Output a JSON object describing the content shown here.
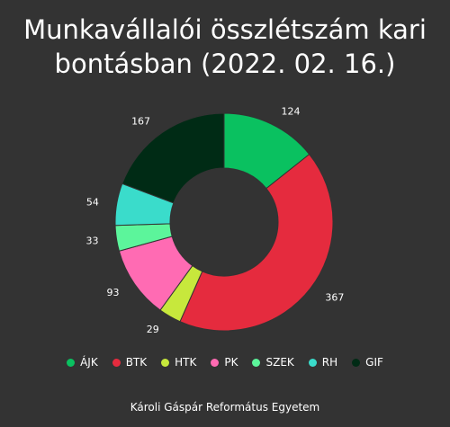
{
  "chart_data": {
    "type": "pie",
    "variant": "donut",
    "title_lines": [
      "Munkavállalói összlétszám kari",
      "bontásban (2022. 02. 16.)"
    ],
    "categories": [
      "ÁJK",
      "BTK",
      "HTK",
      "PK",
      "SZEK",
      "RH",
      "GIF"
    ],
    "values": [
      124,
      367,
      29,
      93,
      33,
      54,
      167
    ],
    "colors": [
      "#0ac160",
      "#e52b3e",
      "#c7e83c",
      "#ff6bb3",
      "#5cf59b",
      "#3adccb",
      "#002b15"
    ],
    "legend_position": "bottom"
  },
  "footer": "Károli Gáspár Református Egyetem"
}
